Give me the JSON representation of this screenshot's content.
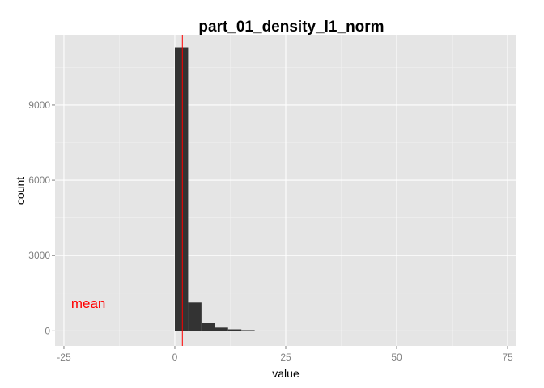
{
  "chart_data": {
    "type": "histogram",
    "title": "part_01_density_l1_norm",
    "xlabel": "value",
    "ylabel": "count",
    "xlim": [
      -27,
      77
    ],
    "ylim": [
      -600,
      11800
    ],
    "x_ticks": [
      -25,
      0,
      25,
      50,
      75
    ],
    "y_ticks": [
      0,
      3000,
      6000,
      9000
    ],
    "grid": true,
    "bin_width": 3,
    "bins": [
      {
        "start": 0,
        "end": 3,
        "count": 11300
      },
      {
        "start": 3,
        "end": 6,
        "count": 1130
      },
      {
        "start": 6,
        "end": 9,
        "count": 320
      },
      {
        "start": 9,
        "end": 12,
        "count": 130
      },
      {
        "start": 12,
        "end": 15,
        "count": 60
      },
      {
        "start": 15,
        "end": 18,
        "count": 30
      }
    ],
    "bar_color": "#333333",
    "mean_line": {
      "x": 1.7,
      "color": "#ff0000"
    },
    "annotations": [
      {
        "text": "mean",
        "x": -19.5,
        "y": 1100,
        "color": "#ff0000"
      }
    ]
  }
}
